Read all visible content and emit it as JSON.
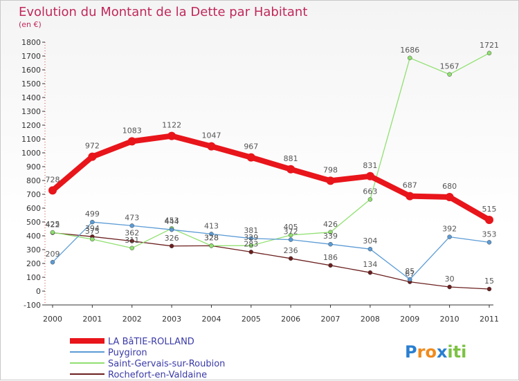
{
  "chart_data": {
    "type": "line",
    "title": "Evolution du Montant de la Dette par Habitant",
    "subtitle": "(en €)",
    "xlabel": "",
    "ylabel": "",
    "x": [
      "2000",
      "2001",
      "2002",
      "2003",
      "2004",
      "2005",
      "2006",
      "2007",
      "2008",
      "2009",
      "2010",
      "2011"
    ],
    "ylim": [
      -100,
      1800
    ],
    "yticks": [
      -100,
      0,
      100,
      200,
      300,
      400,
      500,
      600,
      700,
      800,
      900,
      1000,
      1100,
      1200,
      1300,
      1400,
      1500,
      1600,
      1700,
      1800
    ],
    "grid": false,
    "legend_position": "bottom-left",
    "series": [
      {
        "name": "LA BâTIE-ROLLAND",
        "color": "#e8151b",
        "values": [
          728,
          972,
          1083,
          1122,
          1047,
          967,
          881,
          798,
          831,
          687,
          680,
          515
        ]
      },
      {
        "name": "Puygiron",
        "color": "#5b9bd5",
        "values": [
          209,
          499,
          473,
          444,
          413,
          381,
          372,
          339,
          304,
          85,
          392,
          353
        ]
      },
      {
        "name": "Saint-Gervais-sur-Roubion",
        "color": "#90e070",
        "values": [
          425,
          375,
          311,
          453,
          328,
          329,
          405,
          426,
          663,
          1686,
          1567,
          1721
        ]
      },
      {
        "name": "Rochefort-en-Valdaine",
        "color": "#6b1e1e",
        "values": [
          422,
          394,
          362,
          326,
          328,
          283,
          236,
          186,
          134,
          67,
          30,
          15
        ]
      }
    ]
  },
  "branding": {
    "logo_letters": [
      "P",
      "r",
      "o",
      "x",
      "i",
      "t",
      "i"
    ],
    "logo_colors": [
      "#2a7fd0",
      "#f08a1c",
      "#f08a1c",
      "#2a7fd0",
      "#7cc242",
      "#7cc242",
      "#7cc242"
    ]
  }
}
